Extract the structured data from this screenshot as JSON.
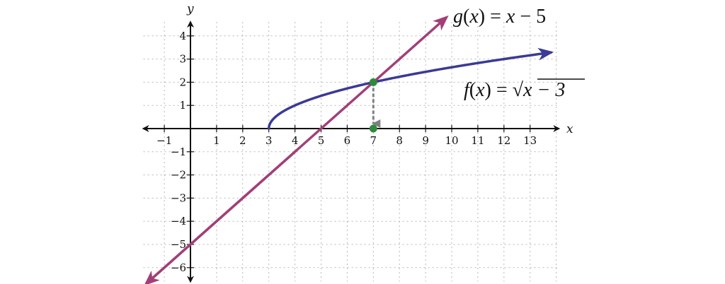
{
  "chart_data": {
    "type": "line",
    "x_axis": {
      "label": "x",
      "range": [
        -1.8,
        14.1
      ],
      "tick_labels": [
        "−1",
        "1",
        "2",
        "3",
        "4",
        "5",
        "6",
        "7",
        "8",
        "9",
        "10",
        "11",
        "12",
        "13"
      ],
      "tick_values": [
        -1,
        1,
        2,
        3,
        4,
        5,
        6,
        7,
        8,
        9,
        10,
        11,
        12,
        13
      ]
    },
    "y_axis": {
      "label": "y",
      "range": [
        -6.6,
        4.6
      ],
      "tick_labels": [
        "4",
        "3",
        "2",
        "1",
        "−1",
        "−2",
        "−3",
        "−4",
        "−5",
        "−6"
      ],
      "tick_values": [
        4,
        3,
        2,
        1,
        -1,
        -2,
        -3,
        -4,
        -5,
        -6
      ]
    },
    "grid": true,
    "series": [
      {
        "key": "g",
        "label_parts": [
          "g",
          "(",
          "x",
          ")",
          " = ",
          "x",
          " − 5"
        ],
        "color": "#a23f77",
        "type": "line",
        "formula": "x - 5",
        "x_range": [
          -1.7,
          9.8
        ]
      },
      {
        "key": "f",
        "label_parts": [
          "f",
          "(",
          "x",
          ")",
          " = ",
          "√",
          "x − 3"
        ],
        "color": "#3b3a95",
        "type": "curve",
        "formula": "sqrt(x - 3)",
        "x_range": [
          3,
          13.8
        ]
      }
    ],
    "points": [
      {
        "x": 7,
        "y": 2,
        "color": "#2e8b3e"
      },
      {
        "x": 7,
        "y": 0,
        "color": "#2e8b3e"
      }
    ],
    "projection": {
      "from": [
        7,
        2
      ],
      "to": [
        7,
        0
      ],
      "style": "dashed-arrow",
      "color": "#808080"
    }
  }
}
